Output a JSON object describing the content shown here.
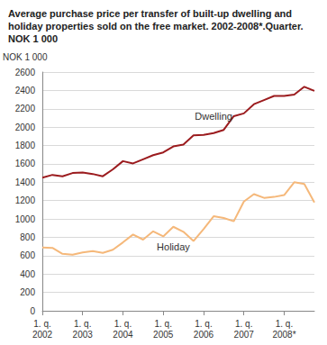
{
  "chart_data": {
    "type": "line",
    "title": "Average purchase price per transfer of built-up dwelling and holiday properties sold on the free market. 2002-2008*.Quarter. NOK 1 000",
    "y_label": "NOK 1 000",
    "categories": [
      "1. q. 2002",
      null,
      null,
      null,
      "1. q. 2003",
      null,
      null,
      null,
      "1. q. 2004",
      null,
      null,
      null,
      "1. q. 2005",
      null,
      null,
      null,
      "1. q. 2006",
      null,
      null,
      null,
      "1. q. 2007",
      null,
      null,
      null,
      "1. q. 2008*",
      null,
      null,
      null
    ],
    "series": [
      {
        "name": "Dwelling",
        "color": "#9b1b1e",
        "values": [
          1450,
          1480,
          1465,
          1500,
          1505,
          1490,
          1465,
          1540,
          1630,
          1605,
          1650,
          1695,
          1725,
          1790,
          1810,
          1910,
          1915,
          1935,
          1970,
          2120,
          2150,
          2250,
          2295,
          2340,
          2340,
          2355,
          2440,
          2395
        ]
      },
      {
        "name": "Holiday",
        "color": "#f5b87a",
        "values": [
          690,
          685,
          620,
          610,
          635,
          650,
          630,
          665,
          745,
          830,
          775,
          865,
          810,
          915,
          860,
          760,
          890,
          1030,
          1010,
          975,
          1190,
          1270,
          1230,
          1240,
          1260,
          1400,
          1380,
          1180
        ]
      }
    ],
    "ylim": [
      0,
      2600
    ],
    "yticks": [
      0,
      200,
      400,
      600,
      800,
      1000,
      1200,
      1400,
      1600,
      1800,
      2000,
      2200,
      2400,
      2600
    ],
    "grid": true
  }
}
